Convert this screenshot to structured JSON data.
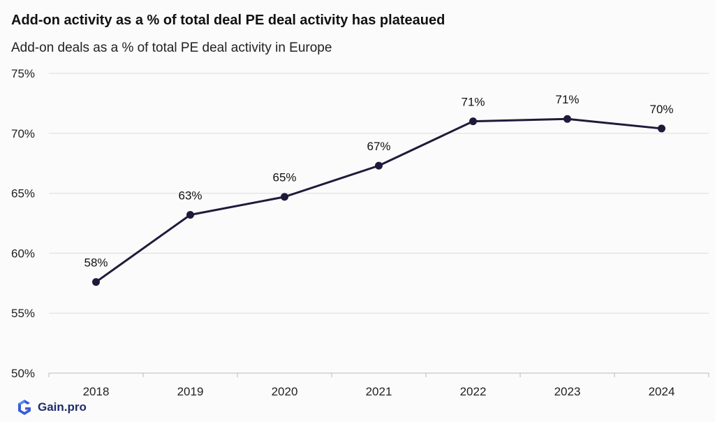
{
  "header": {
    "title": "Add-on activity as a % of total deal PE deal activity has plateaued",
    "subtitle": "Add-on deals as a % of total PE deal activity in Europe"
  },
  "brand": {
    "name": "Gain.pro",
    "color": "#3a5bd9"
  },
  "chart_data": {
    "type": "line",
    "categories": [
      "2018",
      "2019",
      "2020",
      "2021",
      "2022",
      "2023",
      "2024"
    ],
    "values": [
      57.6,
      63.2,
      64.7,
      67.3,
      71.0,
      71.2,
      70.4
    ],
    "data_labels": [
      "58%",
      "63%",
      "65%",
      "67%",
      "71%",
      "71%",
      "70%"
    ],
    "yticks": [
      "50%",
      "55%",
      "60%",
      "65%",
      "70%",
      "75%"
    ],
    "ytick_values": [
      50,
      55,
      60,
      65,
      70,
      75
    ],
    "ylim": [
      50,
      75
    ],
    "grid": true,
    "line_color": "#1e1b3a",
    "title": "Add-on activity as a % of total deal PE deal activity has plateaued",
    "subtitle": "Add-on deals as a % of total PE deal activity in Europe"
  }
}
